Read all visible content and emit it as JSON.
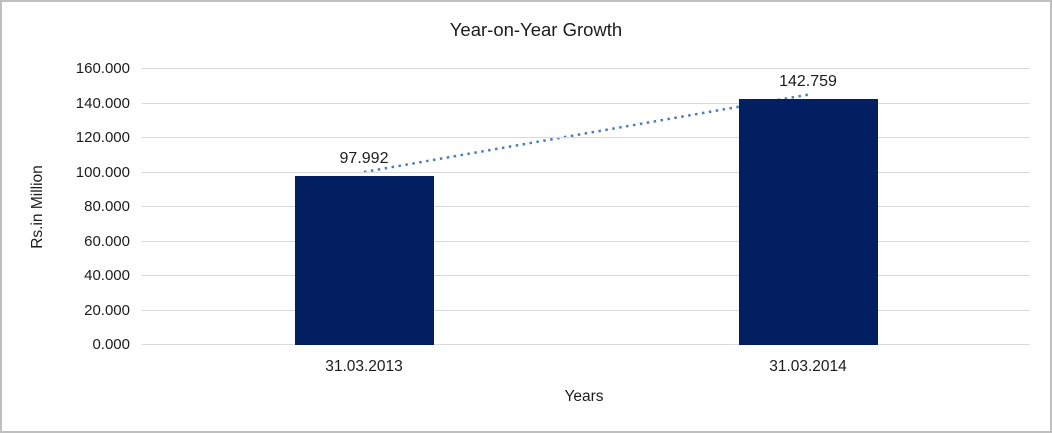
{
  "chart": {
    "title": "Year-on-Year Growth",
    "y_axis_title": "Rs.in Million",
    "x_axis_title": "Years",
    "colors": {
      "bar": "#022061",
      "trendline": "#4A7EBB",
      "gridline": "#D9D9D9",
      "text": "#1c1c1c",
      "border": "#BFBFBF",
      "background": "#FFFFFF"
    }
  },
  "chart_data": {
    "type": "bar",
    "title": "Year-on-Year Growth",
    "xlabel": "Years",
    "ylabel": "Rs.in Million",
    "categories": [
      "31.03.2013",
      "31.03.2014"
    ],
    "values": [
      97.992,
      142.759
    ],
    "values_text": [
      "97.992",
      "142.759"
    ],
    "y_ticks": [
      "0.000",
      "20.000",
      "40.000",
      "60.000",
      "80.000",
      "100.000",
      "120.000",
      "140.000",
      "160.000"
    ],
    "ylim": [
      0,
      160
    ],
    "grid": "horizontal",
    "legend": "none",
    "trendline": {
      "style": "dotted",
      "from_value": 97.992,
      "to_value": 142.759
    }
  }
}
